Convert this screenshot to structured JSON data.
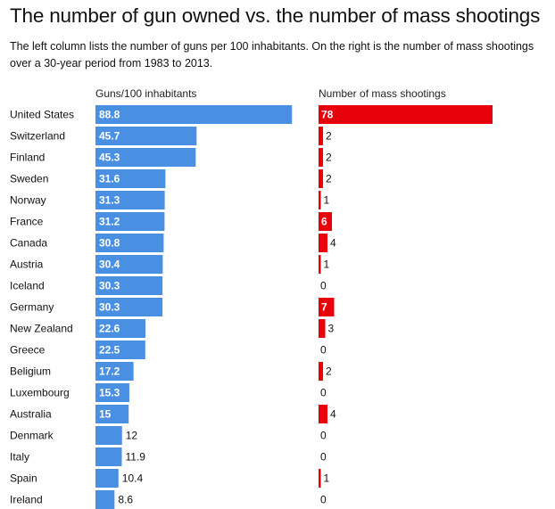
{
  "title": "The number of gun owned vs. the number of mass shootings",
  "subtitle": "The left column lists the number of guns per 100 inhabitants. On the right is the number of mass shootings over a 30-year period from 1983 to 2013.",
  "colors": {
    "guns_bar": "#4a90e2",
    "shootings_bar": "#e8000a",
    "inside_label": "#ffffff",
    "outside_label": "#111111"
  },
  "chart_data": {
    "type": "bar",
    "orientation": "horizontal",
    "categories": [
      "United States",
      "Switzerland",
      "Finland",
      "Sweden",
      "Norway",
      "France",
      "Canada",
      "Austria",
      "Iceland",
      "Germany",
      "New Zealand",
      "Greece",
      "Beligium",
      "Luxembourg",
      "Australia",
      "Denmark",
      "Italy",
      "Spain",
      "Ireland"
    ],
    "series": [
      {
        "name": "Guns/100 inhabitants",
        "values": [
          88.8,
          45.7,
          45.3,
          31.6,
          31.3,
          31.2,
          30.8,
          30.4,
          30.3,
          30.3,
          22.6,
          22.5,
          17.2,
          15.3,
          15,
          12,
          11.9,
          10.4,
          8.6
        ],
        "labels": [
          "88.8",
          "45.7",
          "45.3",
          "31.6",
          "31.3",
          "31.2",
          "30.8",
          "30.4",
          "30.3",
          "30.3",
          "22.6",
          "22.5",
          "17.2",
          "15.3",
          "15",
          "12",
          "11.9",
          "10.4",
          "8.6"
        ]
      },
      {
        "name": "Number of mass shootings",
        "values": [
          78,
          2,
          2,
          2,
          1,
          6,
          4,
          1,
          0,
          7,
          3,
          0,
          2,
          0,
          4,
          0,
          0,
          1,
          0
        ],
        "labels": [
          "78",
          "2",
          "2",
          "2",
          "1",
          "6",
          "4",
          "1",
          "0",
          "7",
          "3",
          "0",
          "2",
          "0",
          "4",
          "0",
          "0",
          "1",
          "0"
        ]
      }
    ],
    "grid": false,
    "legend": "none"
  }
}
